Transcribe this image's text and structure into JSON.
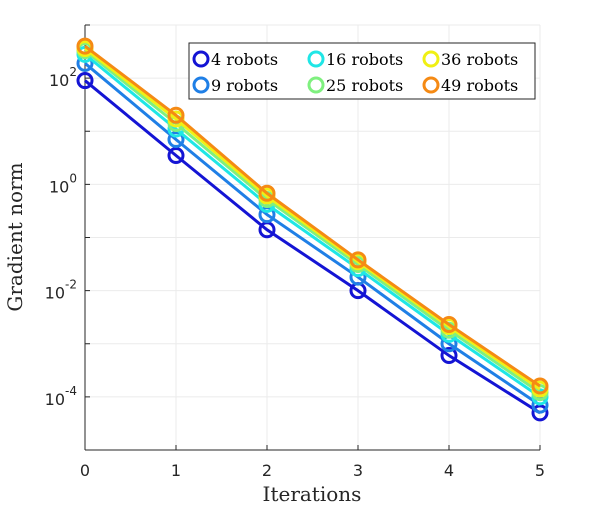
{
  "chart_data": {
    "type": "line",
    "xlabel": "Iterations",
    "ylabel": "Gradient norm",
    "x": [
      0,
      1,
      2,
      3,
      4,
      5
    ],
    "x_ticks": [
      "0",
      "1",
      "2",
      "3",
      "4",
      "5"
    ],
    "xlim": [
      0,
      5
    ],
    "ylim": [
      1e-05,
      1000
    ],
    "y_scale": "log",
    "y_ticks": [
      {
        "value": 100,
        "base": "10",
        "exp": "2"
      },
      {
        "value": 1,
        "base": "10",
        "exp": "0"
      },
      {
        "value": 0.01,
        "base": "10",
        "exp": "-2"
      },
      {
        "value": 0.0001,
        "base": "10",
        "exp": "-4"
      }
    ],
    "grid": true,
    "legend_position": "top-right",
    "series": [
      {
        "name": "4 robots",
        "color": "#1414d4",
        "values": [
          90,
          3.5,
          0.14,
          0.01,
          0.0006,
          5e-05
        ]
      },
      {
        "name": "9 robots",
        "color": "#1f7fe6",
        "values": [
          190,
          7,
          0.27,
          0.018,
          0.001,
          7e-05
        ]
      },
      {
        "name": "16 robots",
        "color": "#1fe6e6",
        "values": [
          280,
          11,
          0.42,
          0.026,
          0.0015,
          0.0001
        ]
      },
      {
        "name": "25 robots",
        "color": "#7ff07f",
        "values": [
          330,
          14,
          0.52,
          0.031,
          0.0018,
          0.00012
        ]
      },
      {
        "name": "36 robots",
        "color": "#f0f014",
        "values": [
          360,
          17,
          0.6,
          0.035,
          0.0021,
          0.00014
        ]
      },
      {
        "name": "49 robots",
        "color": "#f58a14",
        "values": [
          400,
          20,
          0.68,
          0.038,
          0.0023,
          0.00016
        ]
      }
    ]
  }
}
